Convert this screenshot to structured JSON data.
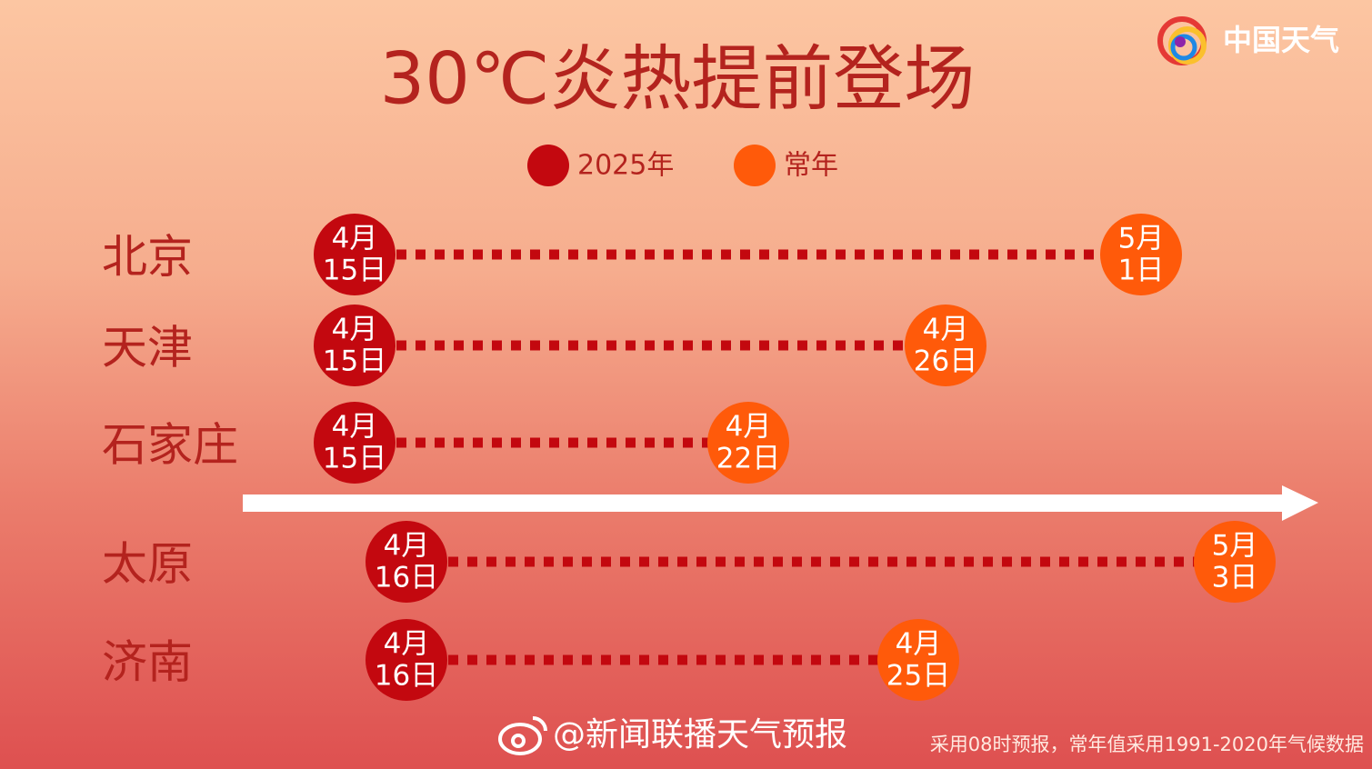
{
  "logo": "中国天气",
  "title": "30℃炎热提前登场",
  "legend": [
    {
      "label": "2025年",
      "color": "#c3080f"
    },
    {
      "label": "常年",
      "color": "#ff5a0a"
    }
  ],
  "rows": [
    {
      "city": "北京",
      "year2025": [
        "4月",
        "15日"
      ],
      "normal": [
        "5月",
        "1日"
      ]
    },
    {
      "city": "天津",
      "year2025": [
        "4月",
        "15日"
      ],
      "normal": [
        "4月",
        "26日"
      ]
    },
    {
      "city": "石家庄",
      "year2025": [
        "4月",
        "15日"
      ],
      "normal": [
        "4月",
        "22日"
      ]
    },
    {
      "city": "太原",
      "year2025": [
        "4月",
        "16日"
      ],
      "normal": [
        "5月",
        "3日"
      ]
    },
    {
      "city": "济南",
      "year2025": [
        "4月",
        "16日"
      ],
      "normal": [
        "4月",
        "25日"
      ]
    }
  ],
  "footer": {
    "source": "@新闻联播天气预报",
    "note": "采用08时预报，常年值采用1991-2020年气候数据"
  }
}
